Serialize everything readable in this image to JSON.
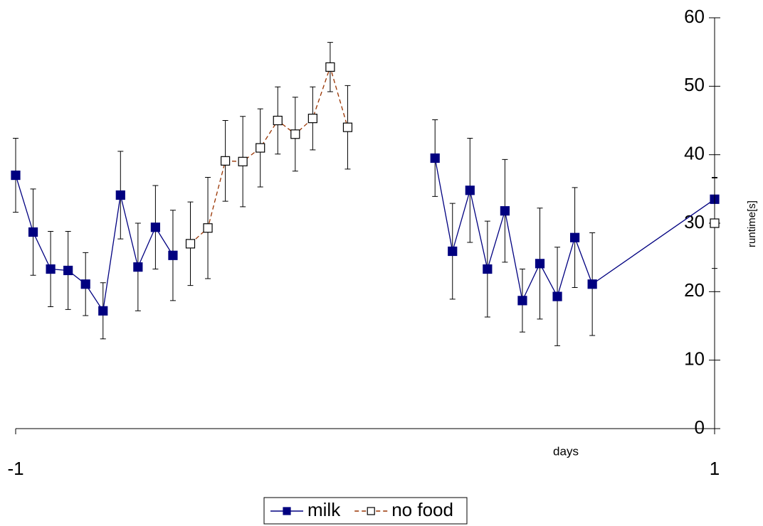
{
  "chart_data": {
    "type": "line",
    "x": [
      -1,
      -0.95,
      -0.9,
      -0.85,
      -0.8,
      -0.75,
      -0.7,
      -0.65,
      -0.6,
      -0.55,
      -0.5,
      -0.45,
      -0.4,
      -0.35,
      -0.3,
      -0.25,
      -0.2,
      -0.15,
      -0.1,
      -0.05,
      0.2,
      0.25,
      0.3,
      0.35,
      0.4,
      0.45,
      0.5,
      0.55,
      0.6,
      0.65,
      1
    ],
    "series": [
      {
        "name": "milk",
        "color": "#000080",
        "marker": "filled",
        "dashed": false,
        "values": [
          37,
          28.7,
          23.3,
          23.1,
          21.1,
          17.2,
          34.1,
          23.6,
          29.4,
          25.3,
          null,
          null,
          null,
          null,
          null,
          null,
          null,
          null,
          null,
          null,
          39.5,
          25.9,
          34.8,
          23.3,
          31.8,
          18.7,
          24.1,
          19.3,
          27.9,
          21.1,
          33.5
        ],
        "errors": [
          5.4,
          6.3,
          5.5,
          5.7,
          4.6,
          4.1,
          6.4,
          6.4,
          6.1,
          6.6,
          null,
          null,
          null,
          null,
          null,
          null,
          null,
          null,
          null,
          null,
          5.6,
          7,
          7.6,
          7,
          7.5,
          4.6,
          8.1,
          7.2,
          7.3,
          7.5,
          3.2
        ]
      },
      {
        "name": "no food",
        "color": "#993300",
        "marker": "open",
        "dashed": true,
        "values": [
          null,
          null,
          null,
          null,
          null,
          null,
          null,
          null,
          null,
          null,
          27,
          29.3,
          39.1,
          39,
          41,
          45,
          43,
          45.3,
          52.8,
          44,
          null,
          null,
          null,
          null,
          null,
          null,
          null,
          null,
          null,
          null,
          30
        ],
        "errors": [
          null,
          null,
          null,
          null,
          null,
          null,
          null,
          null,
          null,
          null,
          6.1,
          7.4,
          5.9,
          6.6,
          5.7,
          4.9,
          5.4,
          4.6,
          3.6,
          6.1,
          null,
          null,
          null,
          null,
          null,
          null,
          null,
          null,
          null,
          null,
          6.6
        ]
      }
    ],
    "x_label": "days",
    "y_label": "runtime[s]",
    "xlim": [
      -1,
      1
    ],
    "xticks": [
      -1,
      1
    ],
    "ylim": [
      0,
      60
    ],
    "yticks": [
      0,
      10,
      20,
      30,
      40,
      50,
      60
    ],
    "y_axis_side": "right",
    "grid": false,
    "legend": "bottom"
  }
}
